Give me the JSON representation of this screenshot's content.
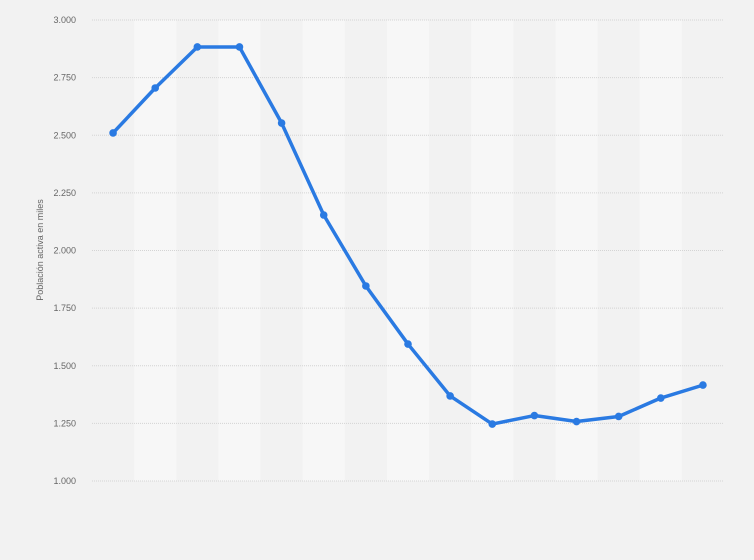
{
  "chart_data": {
    "type": "line",
    "title": "",
    "xlabel": "",
    "ylabel": "Población activa en miles",
    "ylim": [
      1000,
      3000
    ],
    "yticks": [
      "1.000",
      "1.250",
      "1.500",
      "1.750",
      "2.000",
      "2.250",
      "2.500",
      "2.750",
      "3.000"
    ],
    "ytick_values": [
      1000,
      1250,
      1500,
      1750,
      2000,
      2250,
      2500,
      2750,
      3000
    ],
    "grid": true,
    "legend": "none",
    "series": [
      {
        "values": [
          2510,
          2705,
          2883,
          2883,
          2553,
          2154,
          1846,
          1594,
          1369,
          1247,
          1284,
          1258,
          1280,
          1360,
          1416
        ]
      }
    ],
    "colors": {
      "line": "#2a7ae2",
      "background": "#f2f2f2",
      "band": "#f7f7f7",
      "grid": "#d4d4d4"
    }
  }
}
